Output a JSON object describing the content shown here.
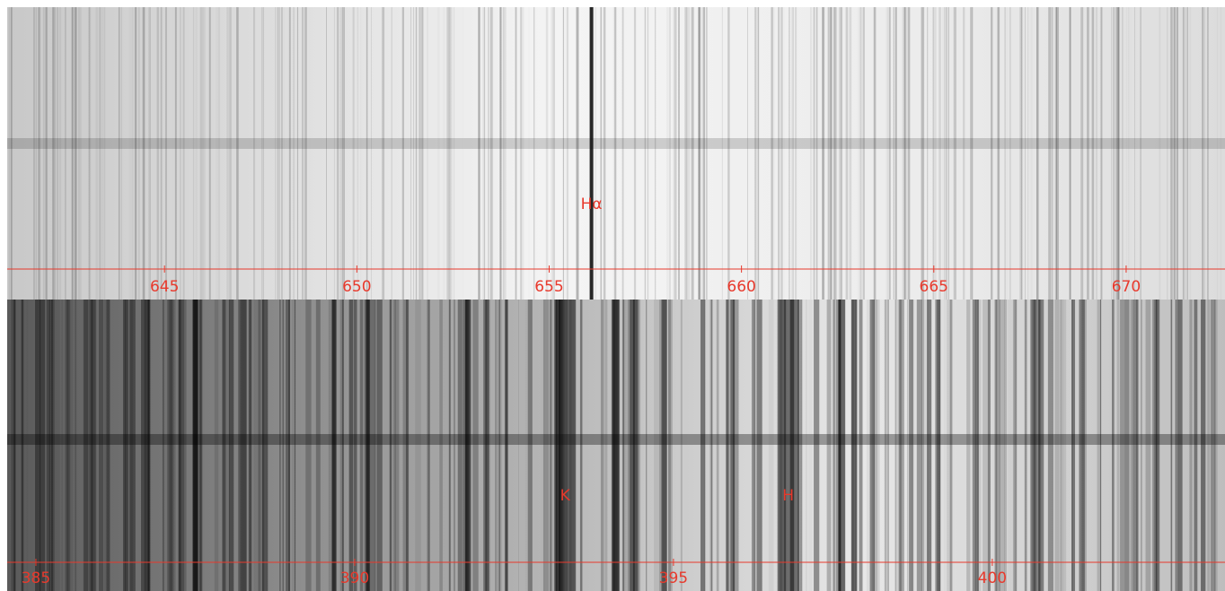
{
  "chart_data": [
    {
      "type": "spectrum",
      "xlim": [
        640.91,
        672.57
      ],
      "xticks": [
        645,
        650,
        655,
        660,
        665,
        670
      ],
      "annotations": [
        {
          "label": "Hα",
          "x": 656.1
        }
      ]
    },
    {
      "type": "spectrum",
      "xlim": [
        384.55,
        403.65
      ],
      "xticks": [
        385,
        390,
        395,
        400
      ],
      "annotations": [
        {
          "label": "K",
          "x": 393.3
        },
        {
          "label": "H",
          "x": 396.8
        }
      ]
    }
  ]
}
